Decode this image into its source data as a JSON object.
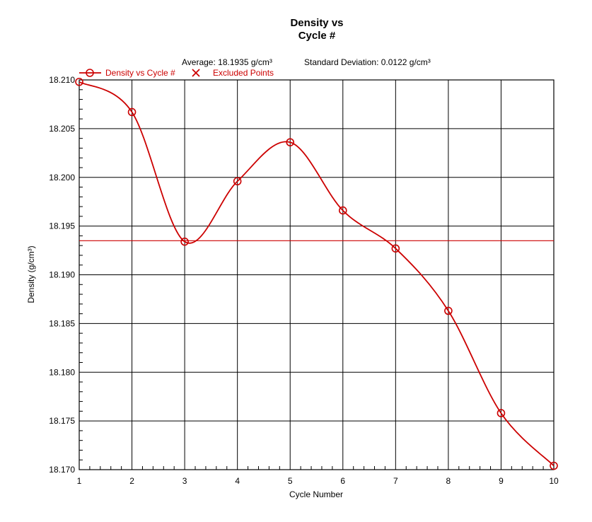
{
  "chart_data": {
    "type": "line",
    "title_lines": [
      "Density vs",
      "Cycle #"
    ],
    "stats": {
      "average": "Average: 18.1935 g/cm³",
      "std_dev": "Standard Deviation: 0.0122 g/cm³"
    },
    "legend": {
      "series_label": "Density vs Cycle #",
      "excluded_label": "Excluded Points"
    },
    "xlabel": "Cycle Number",
    "ylabel": "Density (g/cm³)",
    "x": [
      1,
      2,
      3,
      4,
      5,
      6,
      7,
      8,
      9,
      10
    ],
    "series": [
      {
        "name": "Density vs Cycle #",
        "values": [
          18.2098,
          18.2067,
          18.1934,
          18.1996,
          18.2036,
          18.1966,
          18.1927,
          18.1863,
          18.1758,
          18.1704
        ]
      }
    ],
    "average_line": 18.1935,
    "xlim": [
      1,
      10
    ],
    "ylim": [
      18.17,
      18.21
    ],
    "x_ticks": [
      "1",
      "2",
      "3",
      "4",
      "5",
      "6",
      "7",
      "8",
      "9",
      "10"
    ],
    "y_ticks": [
      "18.170",
      "18.175",
      "18.180",
      "18.185",
      "18.190",
      "18.195",
      "18.200",
      "18.205",
      "18.210"
    ],
    "grid": true,
    "legend_position": "top-left",
    "colors": {
      "series": "#cc0000",
      "grid": "#000000",
      "text": "#000000"
    }
  }
}
